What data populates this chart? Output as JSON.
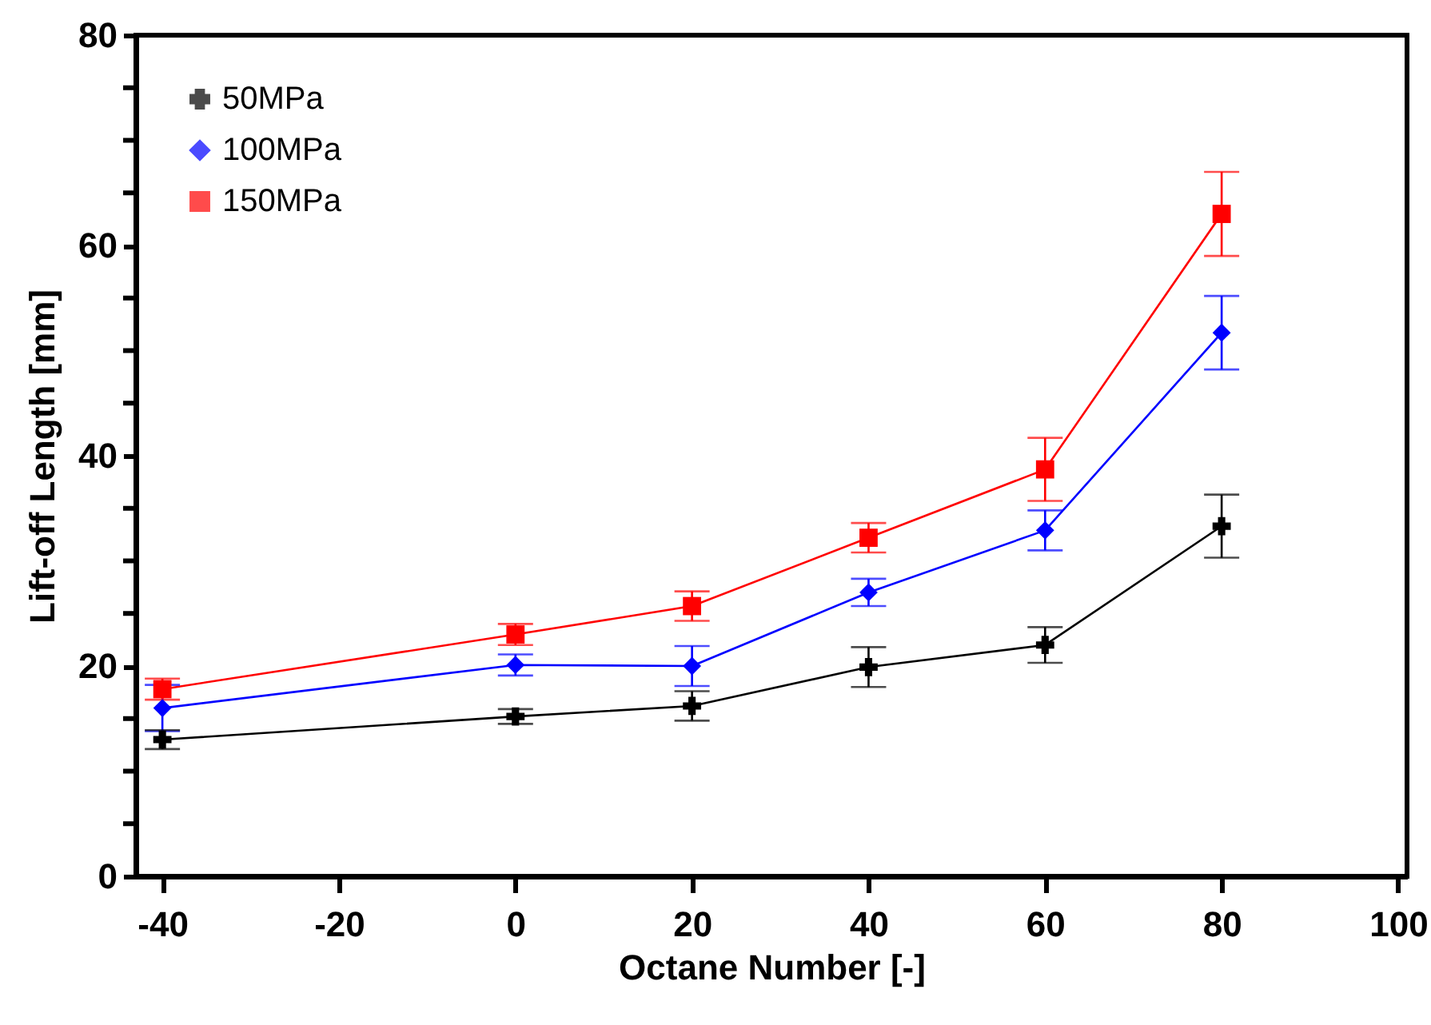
{
  "chart_data": {
    "type": "line",
    "xlabel": "Octane Number [-]",
    "ylabel": "Lift-off Length [mm]",
    "x": [
      -40,
      0,
      20,
      40,
      60,
      80
    ],
    "xlim": [
      -43,
      101
    ],
    "xticks": [
      -40,
      -20,
      0,
      20,
      40,
      60,
      80,
      100
    ],
    "ylim": [
      0,
      80
    ],
    "yticks": [
      0,
      {
        "value": 5,
        "label": null
      },
      {
        "value": 10,
        "label": null
      },
      {
        "value": 15,
        "label": null
      },
      20,
      {
        "value": 25,
        "label": null
      },
      {
        "value": 30,
        "label": null
      },
      {
        "value": 35,
        "label": null
      },
      40,
      {
        "value": 45,
        "label": null
      },
      {
        "value": 50,
        "label": null
      },
      {
        "value": 55,
        "label": null
      },
      60,
      {
        "value": 65,
        "label": null
      },
      {
        "value": 70,
        "label": null
      },
      {
        "value": 75,
        "label": null
      },
      80
    ],
    "grid": false,
    "legend": "top left",
    "line_style": "solid",
    "series": [
      {
        "name": "50MPa",
        "color": "#000000",
        "marker": "cross",
        "values": [
          13.0,
          15.2,
          16.2,
          19.9,
          22.0,
          33.3
        ],
        "errors": [
          0.9,
          0.7,
          1.4,
          1.9,
          1.7,
          3.0
        ]
      },
      {
        "name": "100MPa",
        "color": "#0000ff",
        "marker": "diamond",
        "values": [
          16.0,
          20.1,
          20.0,
          27.0,
          32.9,
          51.7
        ],
        "errors": [
          2.2,
          1.0,
          1.9,
          1.3,
          1.9,
          3.5
        ]
      },
      {
        "name": "150MPa",
        "color": "#ff0000",
        "marker": "square",
        "values": [
          17.8,
          23.0,
          25.7,
          32.2,
          38.7,
          63.0
        ],
        "errors": [
          1.0,
          1.0,
          1.4,
          1.4,
          3.0,
          4.0
        ]
      }
    ]
  }
}
